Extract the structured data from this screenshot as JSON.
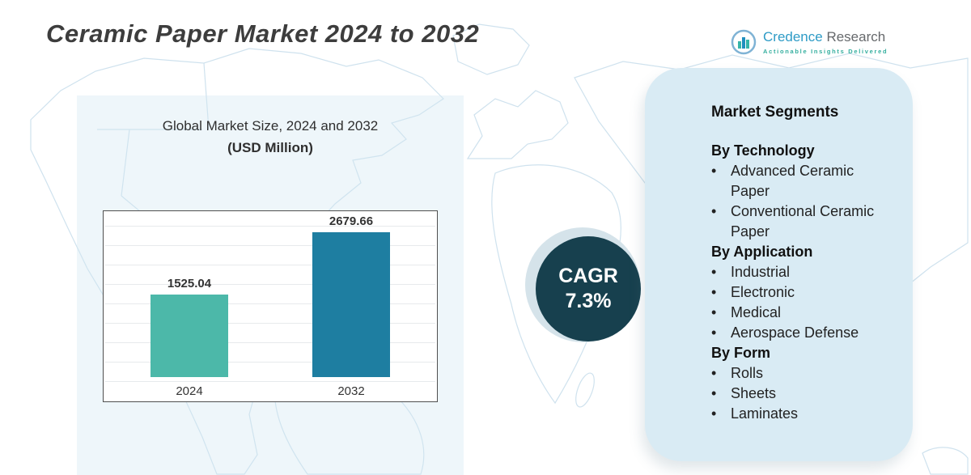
{
  "header": {
    "title": "Ceramic Paper Market 2024 to 2032",
    "logo": {
      "brand_credence": "Credence",
      "brand_research": "Research",
      "tagline": "Actionable Insights Delivered"
    }
  },
  "chart": {
    "title_line1": "Global Market Size, 2024 and 2032",
    "title_line2": "(USD Million)"
  },
  "chart_data": {
    "type": "bar",
    "categories": [
      "2024",
      "2032"
    ],
    "values": [
      1525.04,
      2679.66
    ],
    "title": "Global Market Size, 2024 and 2032 (USD Million)",
    "xlabel": "",
    "ylabel": "USD Million",
    "ylim": [
      0,
      3000
    ],
    "bar_colors": [
      "#4cb8a9",
      "#1e7ea1"
    ],
    "grid": true,
    "legend": false
  },
  "cagr": {
    "label": "CAGR",
    "value": "7.3%"
  },
  "segments": {
    "title": "Market Segments",
    "groups": [
      {
        "heading": "By Technology",
        "items": [
          "Advanced Ceramic Paper",
          "Conventional Ceramic Paper"
        ]
      },
      {
        "heading": "By Application",
        "items": [
          "Industrial",
          "Electronic",
          "Medical",
          "Aerospace Defense"
        ]
      },
      {
        "heading": "By Form",
        "items": [
          "Rolls",
          "Sheets",
          "Laminates"
        ]
      }
    ]
  },
  "colors": {
    "accent_dark_teal": "#17404e",
    "card_blue": "#d9ebf4",
    "bar_2024": "#4cb8a9",
    "bar_2032": "#1e7ea1",
    "map_line": "#cfe2ee"
  }
}
